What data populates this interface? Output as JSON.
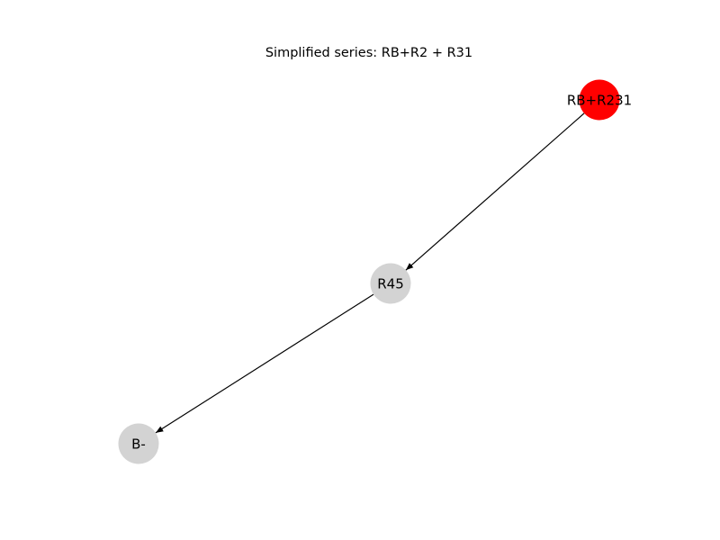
{
  "figure": {
    "title": "Simplified series: RB+R2 + R31"
  },
  "graph": {
    "nodes": [
      {
        "id": "RB+R231",
        "label": "RB+R231",
        "color": "#ff0000"
      },
      {
        "id": "R45",
        "label": "R45",
        "color": "#d3d3d3"
      },
      {
        "id": "B-",
        "label": "B-",
        "color": "#d3d3d3"
      }
    ],
    "edges": [
      {
        "from": "RB+R231",
        "to": "R45",
        "directed": true
      },
      {
        "from": "R45",
        "to": "B-",
        "directed": true
      }
    ],
    "edge_color": "#000000"
  }
}
